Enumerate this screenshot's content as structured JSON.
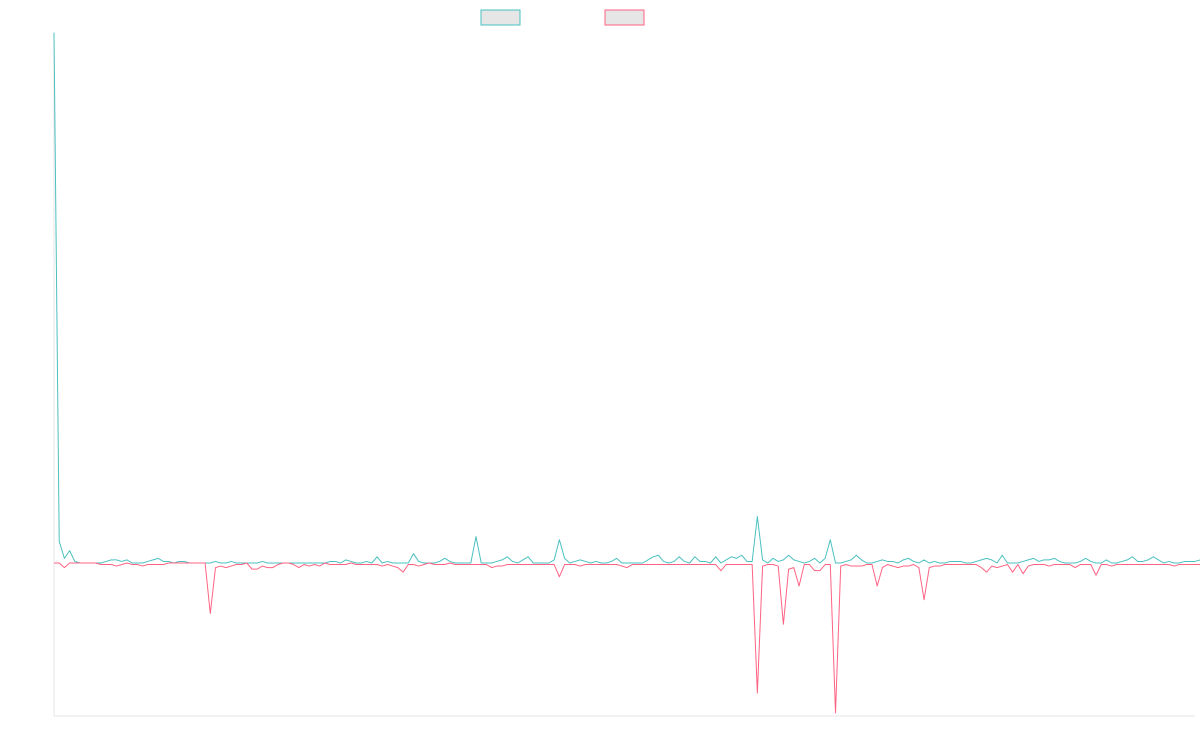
{
  "chart_data": {
    "type": "line",
    "legend": {
      "placement": "top-center",
      "entries": [
        {
          "series_index": 0,
          "label": ""
        },
        {
          "series_index": 1,
          "label": ""
        }
      ]
    },
    "axes": {
      "x": {
        "visible_line": true,
        "ticks_shown": false
      },
      "y": {
        "visible_line": true,
        "ticks_shown": false
      },
      "grid": false
    },
    "x_count": 220,
    "ylim": [
      -100,
      340
    ],
    "series": [
      {
        "color": "#4bc0c0",
        "values": [
          342,
          14,
          3,
          8,
          1,
          0,
          0,
          0,
          0,
          0,
          1,
          2,
          2,
          1,
          2,
          0,
          0,
          0,
          1,
          2,
          3,
          1,
          1,
          0,
          1,
          1,
          0,
          0,
          0,
          0,
          0,
          1,
          0,
          0,
          1,
          0,
          0,
          0,
          0,
          0,
          1,
          0,
          0,
          0,
          0,
          0,
          0,
          0,
          0,
          0,
          0,
          0,
          0,
          1,
          1,
          0,
          2,
          1,
          0,
          0,
          1,
          0,
          4,
          0,
          1,
          0,
          0,
          0,
          0,
          6,
          1,
          0,
          0,
          0,
          1,
          3,
          1,
          0,
          0,
          0,
          0,
          17,
          0,
          0,
          0,
          1,
          2,
          4,
          1,
          0,
          2,
          4,
          0,
          0,
          0,
          0,
          2,
          15,
          3,
          0,
          1,
          2,
          1,
          0,
          1,
          0,
          0,
          1,
          3,
          0,
          0,
          0,
          0,
          0,
          2,
          4,
          5,
          1,
          0,
          1,
          4,
          1,
          0,
          4,
          1,
          1,
          0,
          4,
          0,
          2,
          4,
          3,
          5,
          1,
          1,
          30,
          2,
          0,
          3,
          1,
          2,
          5,
          2,
          1,
          0,
          1,
          3,
          0,
          3,
          15,
          0,
          0,
          1,
          2,
          5,
          2,
          0,
          0,
          1,
          2,
          1,
          1,
          0,
          2,
          3,
          1,
          0,
          2,
          0,
          1,
          0,
          0,
          1,
          1,
          1,
          0,
          0,
          1,
          2,
          3,
          2,
          0,
          5,
          0,
          0,
          0,
          1,
          2,
          3,
          1,
          2,
          2,
          3,
          1,
          0,
          0,
          0,
          1,
          3,
          1,
          0,
          0,
          2,
          0,
          0,
          1,
          2,
          4,
          1,
          1,
          2,
          4,
          2,
          0,
          1,
          0,
          0,
          1,
          1,
          1,
          2,
          2,
          2,
          2
        ]
      },
      {
        "color": "#ff6384",
        "values": [
          0,
          0,
          -3,
          0,
          0,
          0,
          0,
          0,
          0,
          -1,
          -1,
          -1,
          -2,
          -1,
          0,
          -1,
          -1,
          -2,
          -1,
          -1,
          -1,
          -1,
          0,
          0,
          0,
          0,
          0,
          0,
          0,
          0,
          -33,
          -3,
          -2,
          -3,
          -2,
          -1,
          -1,
          0,
          -4,
          -4,
          -2,
          -3,
          -3,
          -1,
          0,
          0,
          -1,
          -3,
          -1,
          -2,
          -1,
          -2,
          0,
          -1,
          -1,
          -1,
          -1,
          0,
          -1,
          -1,
          -1,
          -1,
          -1,
          -2,
          -1,
          -2,
          -3,
          -6,
          -1,
          -1,
          -2,
          -1,
          0,
          -1,
          -1,
          -1,
          0,
          -1,
          -1,
          -1,
          -1,
          -1,
          -1,
          -1,
          -3,
          -2,
          -2,
          -1,
          -1,
          -1,
          -1,
          -1,
          -1,
          -1,
          -1,
          -1,
          -1,
          -9,
          -1,
          -1,
          -1,
          -2,
          -1,
          -1,
          -1,
          -1,
          -1,
          -1,
          -1,
          -2,
          -3,
          -1,
          -1,
          -1,
          -1,
          -1,
          -1,
          -1,
          -1,
          -1,
          -1,
          -1,
          -1,
          -1,
          -1,
          -1,
          -1,
          -1,
          -5,
          -1,
          -1,
          -1,
          -1,
          -1,
          -1,
          -85,
          -2,
          -1,
          -1,
          -2,
          -40,
          -4,
          -3,
          -15,
          -1,
          -1,
          -5,
          -5,
          -1,
          -1,
          -98,
          -2,
          -1,
          -2,
          -2,
          -2,
          -1,
          -1,
          -15,
          -3,
          -1,
          -2,
          -3,
          -2,
          -2,
          -1,
          -3,
          -24,
          -3,
          -2,
          -2,
          -1,
          -1,
          -1,
          -1,
          -1,
          -1,
          -1,
          -3,
          -6,
          -2,
          -3,
          -2,
          -1,
          -6,
          -1,
          -7,
          -2,
          -1,
          -1,
          -1,
          -2,
          -1,
          -1,
          -1,
          -1,
          -3,
          -1,
          -1,
          -1,
          -8,
          -1,
          -1,
          -2,
          -1,
          -1,
          -1,
          -1,
          -1,
          -1,
          -1,
          -1,
          -1,
          -1,
          -1,
          -2,
          -1,
          -1,
          -1,
          -1,
          -1,
          -1,
          -1
        ]
      }
    ]
  }
}
